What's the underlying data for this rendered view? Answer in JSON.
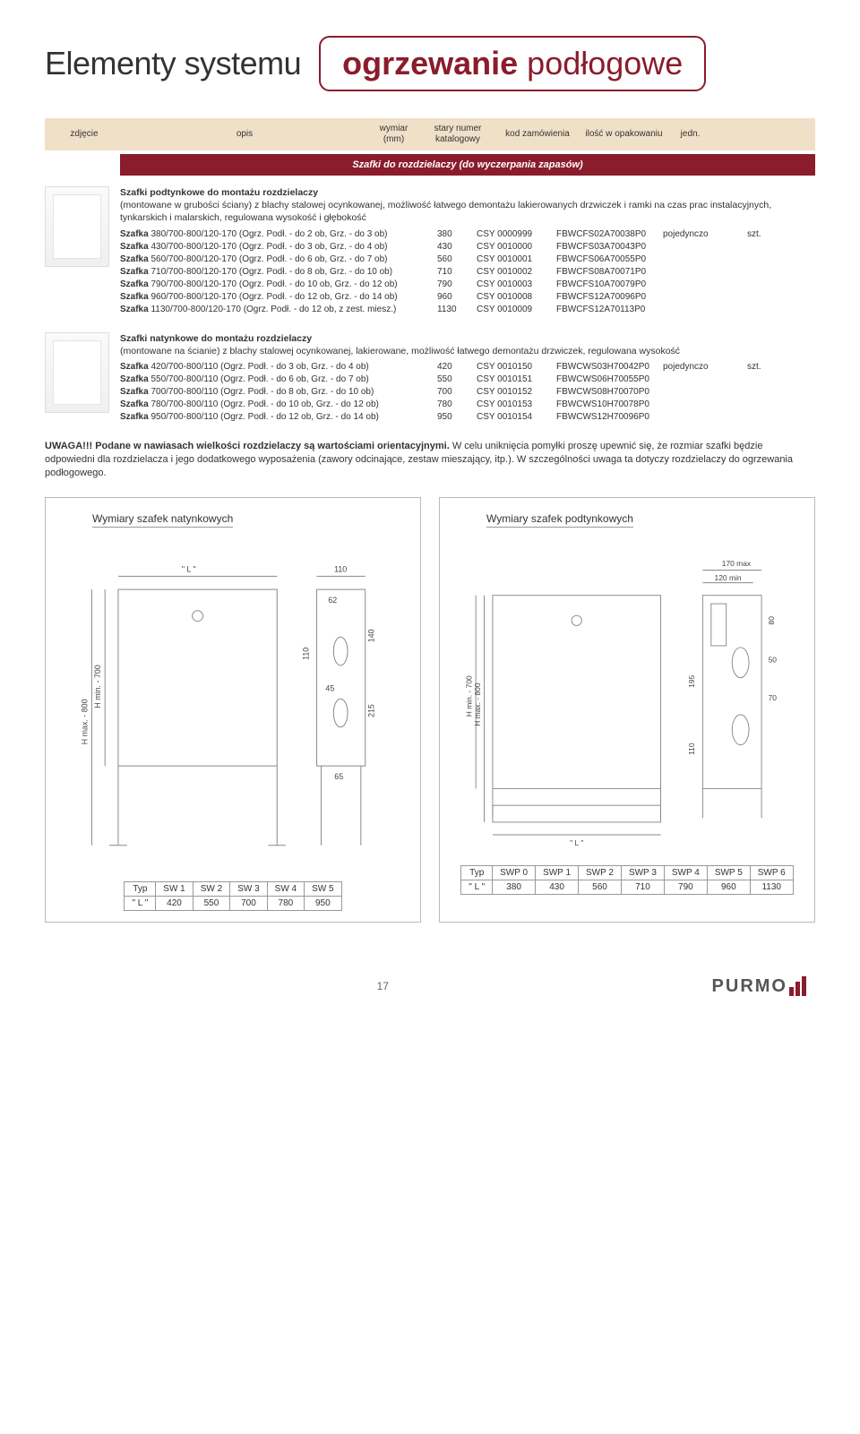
{
  "header": {
    "left": "Elementy systemu",
    "right_strong": "ogrzewanie",
    "right_light": " podłogowe"
  },
  "columns": {
    "c1": "zdjęcie",
    "c2": "opis",
    "c3": "wymiar (mm)",
    "c4": "stary numer katalogowy",
    "c5": "kod zamówienia",
    "c6": "ilość w opakowaniu",
    "c7": "jedn."
  },
  "section_title": "Szafki do rozdzielaczy (do wyczerpania zapasów)",
  "block1": {
    "heading": "Szafki podtynkowe do montażu rozdzielaczy",
    "intro": "(montowane w grubości ściany) z blachy stalowej ocynkowanej, możliwość łatwego demontażu lakierowanych drzwiczek i ramki na czas prac instalacyjnych, tynkarskich i malarskich, regulowana wysokość i głębokość",
    "pack": "pojedynczo",
    "unit": "szt.",
    "rows": [
      {
        "desc": "Szafka 380/700-800/120-170 (Ogrz. Podł. - do 2 ob, Grz. - do 3 ob)",
        "mm": "380",
        "old": "CSY 0000999",
        "code": "FBWCFS02A70038P0"
      },
      {
        "desc": "Szafka 430/700-800/120-170 (Ogrz. Podł. - do 3 ob, Grz. - do 4 ob)",
        "mm": "430",
        "old": "CSY 0010000",
        "code": "FBWCFS03A70043P0"
      },
      {
        "desc": "Szafka 560/700-800/120-170 (Ogrz. Podł. - do 6 ob, Grz. - do 7 ob)",
        "mm": "560",
        "old": "CSY 0010001",
        "code": "FBWCFS06A70055P0"
      },
      {
        "desc": "Szafka 710/700-800/120-170 (Ogrz. Podł. - do 8 ob, Grz. - do 10 ob)",
        "mm": "710",
        "old": "CSY 0010002",
        "code": "FBWCFS08A70071P0"
      },
      {
        "desc": "Szafka 790/700-800/120-170 (Ogrz. Podł. - do 10 ob, Grz. - do 12 ob)",
        "mm": "790",
        "old": "CSY 0010003",
        "code": "FBWCFS10A70079P0"
      },
      {
        "desc": "Szafka 960/700-800/120-170 (Ogrz. Podł. - do 12 ob, Grz. - do 14 ob)",
        "mm": "960",
        "old": "CSY 0010008",
        "code": "FBWCFS12A70096P0"
      },
      {
        "desc": "Szafka 1130/700-800/120-170 (Ogrz. Podł. - do 12 ob, z zest. miesz.)",
        "mm": "1130",
        "old": "CSY 0010009",
        "code": "FBWCFS12A70113P0"
      }
    ]
  },
  "block2": {
    "heading": "Szafki natynkowe do montażu rozdzielaczy",
    "intro": "(montowane na ścianie) z blachy stalowej ocynkowanej, lakierowane, możliwość łatwego demontażu drzwiczek, regulowana wysokość",
    "pack": "pojedynczo",
    "unit": "szt.",
    "rows": [
      {
        "desc": "Szafka 420/700-800/110 (Ogrz. Podł. - do 3 ob, Grz. - do 4 ob)",
        "mm": "420",
        "old": "CSY 0010150",
        "code": "FBWCWS03H70042P0"
      },
      {
        "desc": "Szafka 550/700-800/110 (Ogrz. Podł. - do 6 ob, Grz. - do 7 ob)",
        "mm": "550",
        "old": "CSY 0010151",
        "code": "FBWCWS06H70055P0"
      },
      {
        "desc": "Szafka 700/700-800/110 (Ogrz. Podł. - do 8 ob, Grz. - do 10 ob)",
        "mm": "700",
        "old": "CSY 0010152",
        "code": "FBWCWS08H70070P0"
      },
      {
        "desc": "Szafka 780/700-800/110 (Ogrz. Podł. - do 10 ob, Grz. - do 12 ob)",
        "mm": "780",
        "old": "CSY 0010153",
        "code": "FBWCWS10H70078P0"
      },
      {
        "desc": "Szafka 950/700-800/110 (Ogrz. Podł. - do 12 ob, Grz. - do 14 ob)",
        "mm": "950",
        "old": "CSY 0010154",
        "code": "FBWCWS12H70096P0"
      }
    ]
  },
  "warning": {
    "lead": "UWAGA!!! Podane w nawiasach wielkości rozdzielaczy są wartościami orientacyjnymi.",
    "body": " W celu uniknięcia pomyłki proszę upewnić się, że rozmiar szafki będzie odpowiedni dla rozdzielacza i jego dodatkowego wyposażenia (zawory odcinające, zestaw mieszający, itp.). W szczególności uwaga ta dotyczy rozdzielaczy do ogrzewania podłogowego."
  },
  "diagram_left": {
    "title": "Wymiary szafek natynkowych",
    "dims": {
      "top_L": "\" L \"",
      "d110": "110",
      "d62": "62",
      "d140": "140",
      "d110b": "110",
      "d45": "45",
      "d215": "215",
      "d65": "65",
      "Hmax": "H max. - 800",
      "Hmin": "H min. - 700"
    },
    "table": {
      "headers": [
        "Typ",
        "SW 1",
        "SW 2",
        "SW 3",
        "SW 4",
        "SW 5"
      ],
      "row_label": "\" L \"",
      "values": [
        "420",
        "550",
        "700",
        "780",
        "950"
      ]
    }
  },
  "diagram_right": {
    "title": "Wymiary szafek podtynkowych",
    "dims": {
      "d170": "170 max",
      "d120": "120 min",
      "d80": "80",
      "d195": "195",
      "d50": "50",
      "d70": "70",
      "d110": "110",
      "Hmax": "H max. - 800",
      "Hmin": "H min. - 700",
      "bottom_L": "\" L \""
    },
    "table": {
      "headers": [
        "Typ",
        "SWP 0",
        "SWP 1",
        "SWP 2",
        "SWP 3",
        "SWP 4",
        "SWP 5",
        "SWP 6"
      ],
      "row_label": "\" L \"",
      "values": [
        "380",
        "430",
        "560",
        "710",
        "790",
        "960",
        "1130"
      ]
    }
  },
  "footer": {
    "page": "17",
    "brand": "PURMO"
  },
  "palette": {
    "accent": "#8a1c2c",
    "header_bg": "#f0e0c8",
    "border": "#bbbbbb",
    "diagram_stroke": "#888888"
  }
}
